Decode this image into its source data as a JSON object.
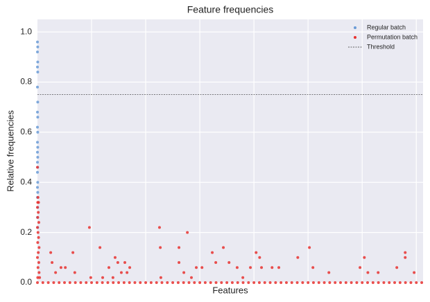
{
  "chart_data": {
    "type": "scatter",
    "title": "Feature frequencies",
    "x_label": "Features",
    "y_label": "Relative frequencies",
    "xlim": [
      0,
      1425
    ],
    "xticks": [
      200,
      400,
      600,
      800,
      1000,
      1200,
      1400
    ],
    "ylim": [
      0,
      1.05
    ],
    "yticks": [
      {
        "value": 0,
        "label": "0.0"
      },
      0.2,
      0.4,
      0.6,
      0.8,
      {
        "value": 1,
        "label": "1.0"
      }
    ],
    "grid": true,
    "legend": "upper right",
    "threshold": {
      "name": "Threshold",
      "value": 0.75,
      "color": "#333333"
    },
    "series": [
      {
        "name": "Regular batch",
        "color": "#6a9bd6",
        "x": [
          0,
          1,
          0,
          1,
          0,
          1,
          0,
          1,
          0,
          1,
          0,
          1,
          0,
          1,
          0,
          1,
          0,
          1,
          0,
          1,
          0,
          1,
          0,
          1,
          0,
          1
        ],
        "values": [
          0.96,
          0.94,
          0.92,
          0.88,
          0.86,
          0.84,
          0.78,
          0.72,
          0.68,
          0.66,
          0.62,
          0.6,
          0.56,
          0.54,
          0.52,
          0.5,
          0.48,
          0.46,
          0.44,
          0.4,
          0.38,
          0.36,
          0.34,
          0.3,
          0.26,
          0.22
        ]
      },
      {
        "name": "Permutation batch",
        "color": "#e8312f",
        "x": [
          0,
          2,
          1,
          4,
          0,
          3,
          1,
          5,
          0,
          2,
          4,
          1,
          6,
          3,
          0,
          5,
          2,
          6,
          1,
          8,
          49,
          54,
          67,
          87,
          103,
          131,
          138,
          192,
          197,
          231,
          241,
          264,
          279,
          287,
          297,
          310,
          323,
          331,
          341,
          451,
          456,
          454,
          523,
          523,
          554,
          541,
          569,
          587,
          608,
          646,
          659,
          687,
          708,
          738,
          759,
          787,
          808,
          821,
          828,
          867,
          892,
          962,
          1005,
          1018,
          1077,
          1192,
          1208,
          1221,
          1259,
          1328,
          1359,
          1359,
          1392,
          0,
          20,
          40,
          60,
          80,
          100,
          120,
          140,
          160,
          180,
          200,
          220,
          240,
          260,
          280,
          300,
          320,
          340,
          360,
          380,
          400,
          420,
          440,
          460,
          480,
          500,
          520,
          540,
          560,
          580,
          600,
          620,
          640,
          660,
          680,
          700,
          720,
          740,
          760,
          780,
          800,
          820,
          840,
          860,
          880,
          900,
          920,
          940,
          960,
          980,
          1000,
          1020,
          1040,
          1060,
          1080,
          1100,
          1120,
          1140,
          1160,
          1180,
          1200,
          1220,
          1240,
          1260,
          1280,
          1300,
          1320,
          1340,
          1360,
          1380,
          1400,
          1420
        ],
        "values": [
          0.46,
          0.34,
          0.32,
          0.32,
          0.3,
          0.28,
          0.26,
          0.24,
          0.22,
          0.2,
          0.18,
          0.16,
          0.14,
          0.12,
          0.1,
          0.08,
          0.06,
          0.04,
          0.02,
          0.02,
          0.12,
          0.08,
          0.04,
          0.06,
          0.06,
          0.12,
          0.04,
          0.22,
          0.02,
          0.14,
          0.02,
          0.06,
          0.02,
          0.1,
          0.08,
          0.04,
          0.08,
          0.04,
          0.06,
          0.22,
          0.02,
          0.14,
          0.14,
          0.08,
          0.2,
          0.04,
          0.02,
          0.06,
          0.06,
          0.12,
          0.08,
          0.14,
          0.08,
          0.06,
          0.02,
          0.06,
          0.12,
          0.1,
          0.06,
          0.06,
          0.06,
          0.1,
          0.14,
          0.06,
          0.04,
          0.06,
          0.1,
          0.04,
          0.04,
          0.06,
          0.12,
          0.1,
          0.04,
          0,
          0,
          0,
          0,
          0,
          0,
          0,
          0,
          0,
          0,
          0,
          0,
          0,
          0,
          0,
          0,
          0,
          0,
          0,
          0,
          0,
          0,
          0,
          0,
          0,
          0,
          0,
          0,
          0,
          0,
          0,
          0,
          0,
          0,
          0,
          0,
          0,
          0,
          0,
          0,
          0,
          0,
          0,
          0,
          0,
          0,
          0,
          0,
          0,
          0,
          0,
          0,
          0,
          0,
          0,
          0,
          0,
          0,
          0,
          0,
          0,
          0,
          0,
          0,
          0,
          0,
          0,
          0,
          0,
          0,
          0,
          0
        ]
      }
    ]
  }
}
